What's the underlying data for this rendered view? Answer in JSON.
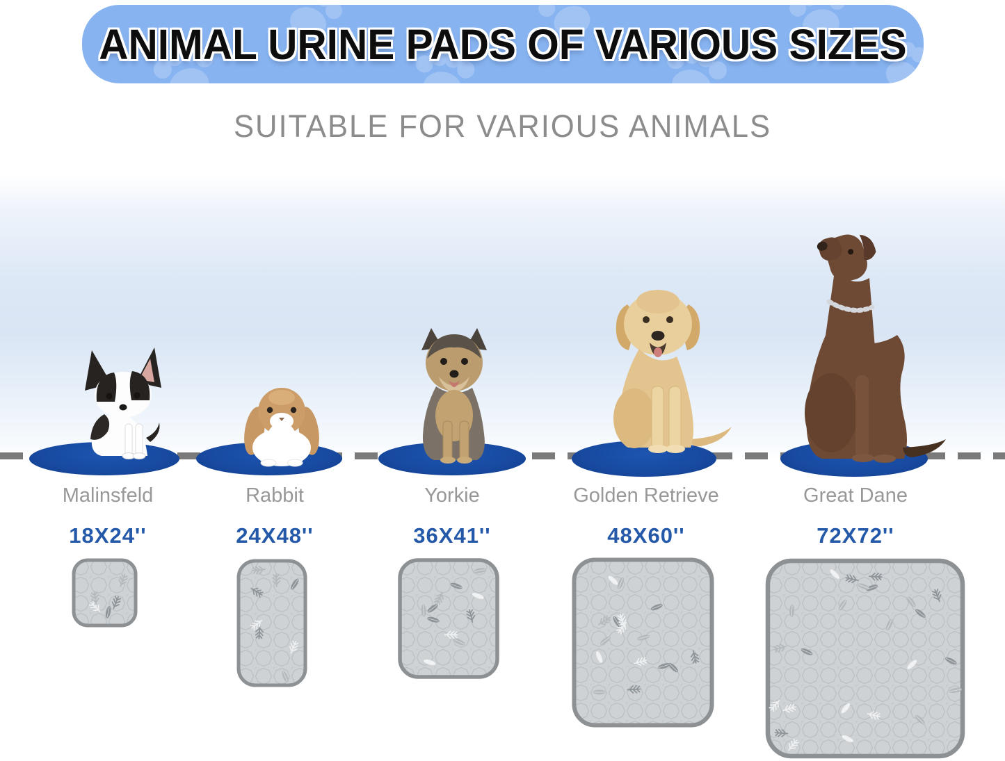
{
  "banner": {
    "title": "ANIMAL URINE PADS OF VARIOUS SIZES",
    "bg_color": "#87b3f0",
    "paw_color": "#a5c6f5",
    "title_color": "#0d0d0d"
  },
  "subtitle": {
    "text": "SUITABLE FOR VARIOUS ANIMALS",
    "color": "#8c8c8c"
  },
  "baseline": {
    "style": "dashed",
    "color": "#7a7a7a"
  },
  "mat_color": "#17499f",
  "name_label_color": "#989898",
  "size_label_color": "#2458a8",
  "pad_style": {
    "fill": "#ced2d5",
    "border": "#8d9194",
    "quilt_pattern": "#bcc1c5"
  },
  "animals": [
    {
      "name": "Malinsfeld",
      "size": "18X24''",
      "type": "small-dog"
    },
    {
      "name": "Rabbit",
      "size": "24X48''",
      "type": "lop-rabbit"
    },
    {
      "name": "Yorkie",
      "size": "36X41''",
      "type": "yorkshire-terrier"
    },
    {
      "name": "Golden Retrieve",
      "size": "48X60''",
      "type": "golden-retriever"
    },
    {
      "name": "Great Dane",
      "size": "72X72''",
      "type": "great-dane"
    }
  ]
}
